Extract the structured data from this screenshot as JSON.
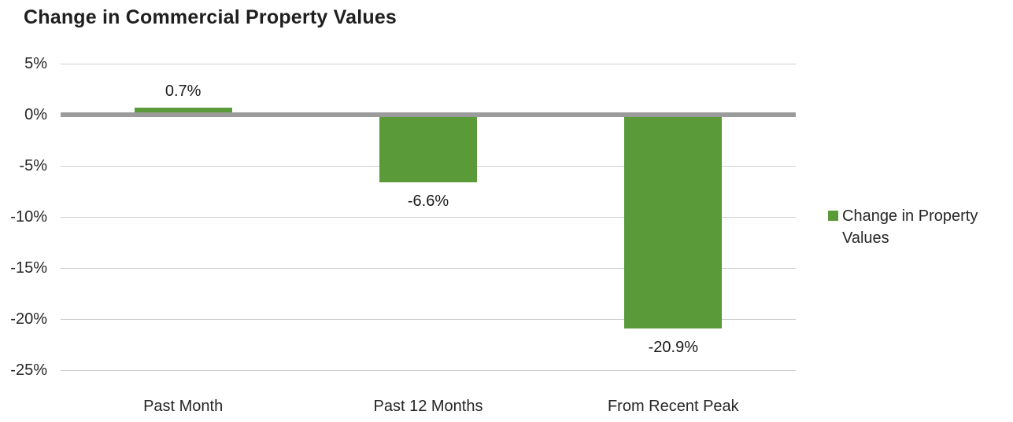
{
  "chart_data": {
    "type": "bar",
    "title": "Change in Commercial Property Values",
    "categories": [
      "Past Month",
      "Past 12 Months",
      "From Recent Peak"
    ],
    "values": [
      0.7,
      -6.6,
      -20.9
    ],
    "data_labels": [
      "0.7%",
      "-6.6%",
      "-20.9%"
    ],
    "series_name": "Change in Property Values",
    "xlabel": "",
    "ylabel": "",
    "ylim": [
      -25,
      5
    ],
    "yticks": [
      5,
      0,
      -5,
      -10,
      -15,
      -20,
      -25
    ],
    "ytick_labels": [
      "5%",
      "0%",
      "-5%",
      "-10%",
      "-15%",
      "-20%",
      "-25%"
    ],
    "grid": true,
    "legend_position": "right",
    "colors": {
      "bar": "#5a9a38",
      "zero_line": "#9b9b9b",
      "gridline": "#cdcdcd",
      "text": "#262626",
      "title_text": "#1f1f1f",
      "background": "#ffffff"
    }
  }
}
